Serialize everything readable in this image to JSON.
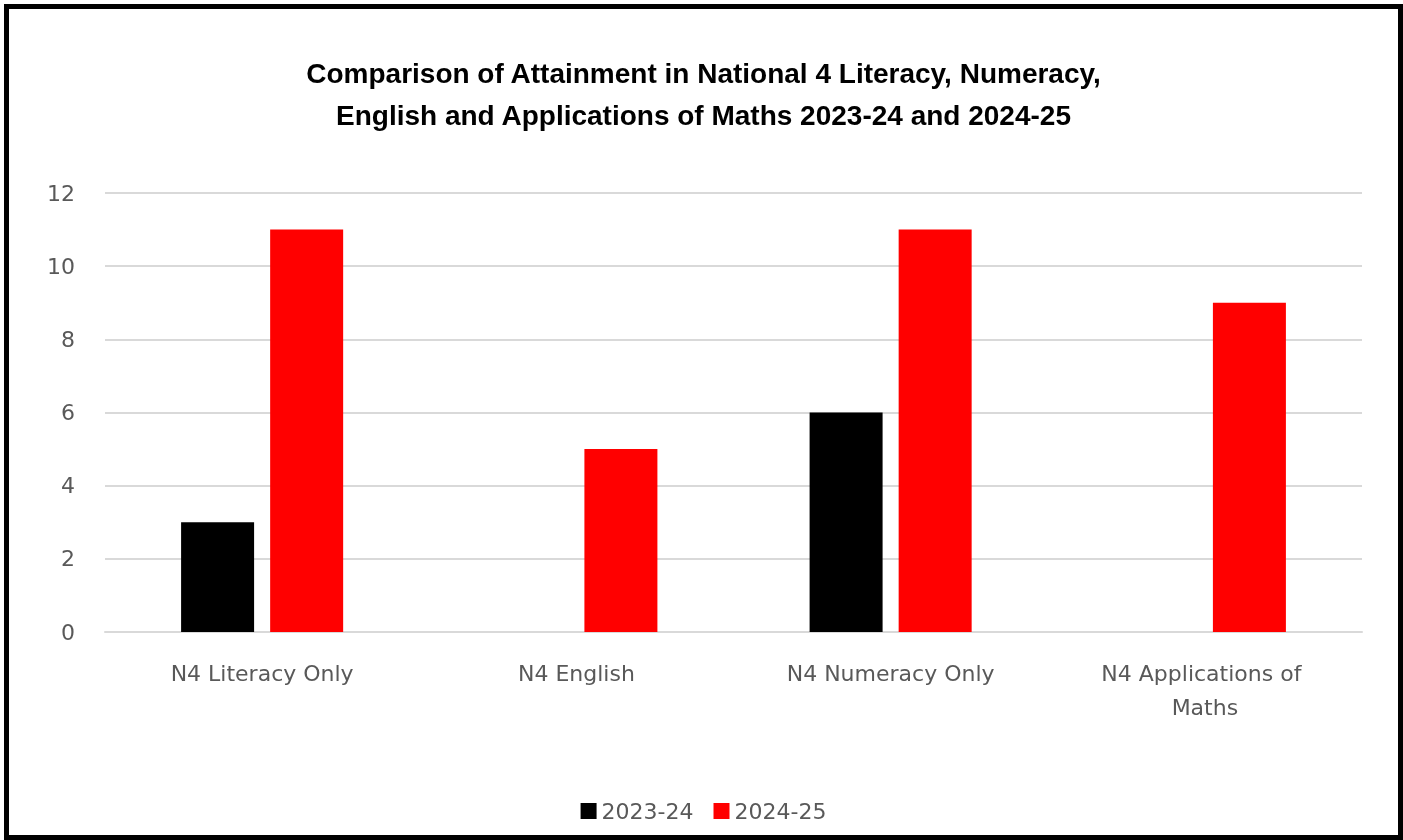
{
  "chart_data": {
    "type": "bar",
    "title": "Comparison of Attainment in National 4 Literacy, Numeracy,\nEnglish and Applications of Maths 2023-24 and 2024-25",
    "categories": [
      "N4 Literacy Only",
      "N4 English",
      "N4 Numeracy Only",
      "N4 Applications of Maths"
    ],
    "series": [
      {
        "name": "2023-24",
        "color": "#000000",
        "values": [
          3,
          0,
          6,
          0
        ]
      },
      {
        "name": "2024-25",
        "color": "#ff0000",
        "values": [
          11,
          5,
          11,
          9
        ]
      }
    ],
    "ylim": [
      0,
      12
    ],
    "yticks": [
      0,
      2,
      4,
      6,
      8,
      10,
      12
    ],
    "grid": "y",
    "legend": "bottom"
  }
}
